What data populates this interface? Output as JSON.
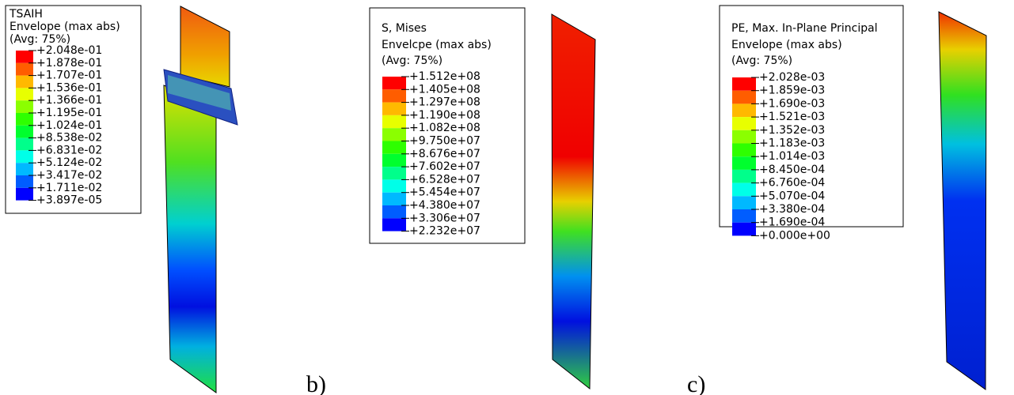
{
  "panels": [
    {
      "title": [
        "TSAIH",
        "Envelope (max abs)",
        "(Avg: 75%)"
      ],
      "levels": [
        "+2.048e-01",
        "+1.878e-01",
        "+1.707e-01",
        "+1.536e-01",
        "+1.366e-01",
        "+1.195e-01",
        "+1.024e-01",
        "+8.538e-02",
        "+6.831e-02",
        "+5.124e-02",
        "+3.417e-02",
        "+1.711e-02",
        "+3.897e-05"
      ]
    },
    {
      "title": [
        "S, Mises",
        "Envelcpe (max abs)",
        "(Avg: 75%)"
      ],
      "levels": [
        "+1.512e+08",
        "+1.405e+08",
        "+1.297e+08",
        "+1.190e+08",
        "+1.082e+08",
        "+9.750e+07",
        "+8.676e+07",
        "+7.602e+07",
        "+6.528e+07",
        "+5.454e+07",
        "+4.380e+07",
        "+3.306e+07",
        "+2.232e+07"
      ],
      "label": "b)"
    },
    {
      "title": [
        "PE, Max. In-Plane Principal",
        "Envelope (max abs)",
        "(Avg: 75%)"
      ],
      "levels": [
        "+2.028e-03",
        "+1.859e-03",
        "+1.690e-03",
        "+1.521e-03",
        "+1.352e-03",
        "+1.183e-03",
        "+1.014e-03",
        "+8.450e-04",
        "+6.760e-04",
        "+5.070e-04",
        "+3.380e-04",
        "+1.690e-04",
        "+0.000e+00"
      ],
      "label": "c)"
    }
  ]
}
